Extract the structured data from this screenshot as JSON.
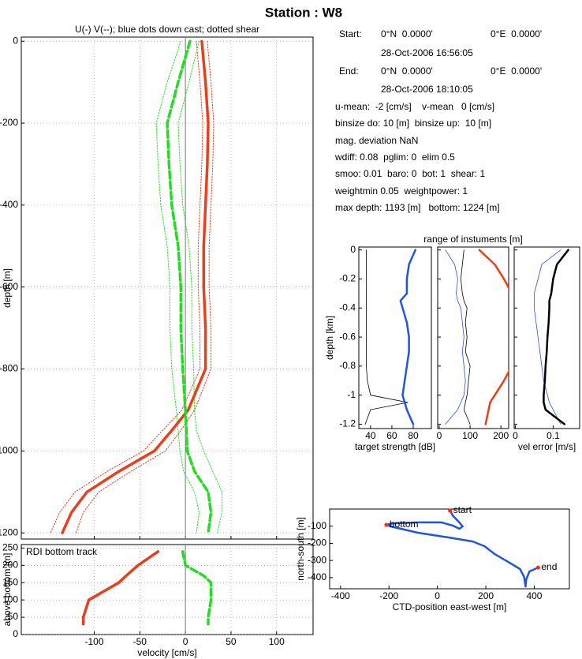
{
  "title": "Station : W8",
  "info": [
    [
      "Start:",
      "0°N  0.0000'",
      "0°E  0.0000'"
    ],
    [
      "28-Oct-2006 16:56:05"
    ],
    [
      "End:",
      "0°N  0.0000'",
      "0°E  0.0000'"
    ],
    [
      "28-Oct-2006 18:10:05"
    ],
    [
      "u-mean:  -2 [cm/s]    v-mean   0 [cm/s]"
    ],
    [
      "binsize do: 10 [m]  binsize up:  10 [m]"
    ],
    [
      "mag. deviation NaN"
    ],
    [
      "wdiff: 0.08  pglim: 0  elim 0.5"
    ],
    [
      "smoo: 0.01  baro: 0  bot: 1  shear: 1"
    ],
    [
      "weightmin 0.05  weightpower: 1"
    ],
    [
      "max depth: 1193 [m]   bottom: 1224 [m]"
    ]
  ],
  "chart_data": [
    {
      "type": "profile",
      "title": "U(-) V(--); blue dots down cast; dotted shear",
      "ylabel": "depth [m]",
      "xlim": [
        -180,
        140
      ],
      "ylim": [
        -1215,
        10
      ],
      "xticks": [
        -100,
        -50,
        0,
        50,
        100
      ],
      "xticklabels": false,
      "yticks": [
        -1200,
        -1000,
        -800,
        -600,
        -400,
        -200,
        0
      ],
      "grid": true,
      "zeroline": true,
      "y": [
        0,
        -100,
        -200,
        -300,
        -400,
        -500,
        -600,
        -700,
        -800,
        -900,
        -950,
        -1000,
        -1050,
        -1100,
        -1150,
        -1200
      ],
      "series": [
        {
          "color": "#e8401c",
          "width": 1,
          "dash": "dotted",
          "values": [
            24,
            28,
            31,
            30,
            28,
            26,
            26,
            28,
            28,
            10,
            -5,
            -22,
            -60,
            -95,
            -112,
            -120
          ]
        },
        {
          "color": "#e8401c",
          "width": 1,
          "dash": "dotted",
          "values": [
            12,
            16,
            19,
            18,
            16,
            14,
            14,
            16,
            16,
            -4,
            -25,
            -46,
            -86,
            -121,
            -138,
            -148
          ]
        },
        {
          "color": "#22dd22",
          "width": 1,
          "dash": "dotted",
          "values": [
            15,
            4,
            -8,
            -6,
            -3,
            4,
            7,
            7,
            9,
            10,
            12,
            20,
            30,
            40,
            40,
            35
          ]
        },
        {
          "color": "#22dd22",
          "width": 1,
          "dash": "dotted",
          "values": [
            -5,
            -20,
            -32,
            -30,
            -27,
            -20,
            -17,
            -17,
            -15,
            -10,
            -8,
            -6,
            -2,
            10,
            15,
            12
          ]
        },
        {
          "color": "#e8401c",
          "width": 3.5,
          "dash": "solid",
          "values": [
            18,
            22,
            25,
            24,
            22,
            20,
            20,
            22,
            22,
            3,
            -15,
            -34,
            -73,
            -108,
            -125,
            -135
          ]
        },
        {
          "color": "#22dd22",
          "width": 3.5,
          "dash": "dashed",
          "values": [
            5,
            -8,
            -20,
            -18,
            -15,
            -8,
            -5,
            -5,
            -3,
            0,
            1,
            2,
            10,
            25,
            28,
            25
          ]
        }
      ]
    },
    {
      "type": "profile",
      "title": "RDI bottom track",
      "ylabel": "above bottom [m]",
      "xlabel": "velocity [cm/s]",
      "xlim": [
        -180,
        140
      ],
      "ylim": [
        0,
        260
      ],
      "xticks": [
        -100,
        -50,
        0,
        50,
        100
      ],
      "yticks": [
        0,
        50,
        100,
        150,
        200,
        250
      ],
      "grid": true,
      "zeroline": true,
      "y": [
        240,
        200,
        170,
        150,
        100,
        50,
        30
      ],
      "series": [
        {
          "color": "#e8401c",
          "width": 3.5,
          "dash": "solid",
          "values": [
            -30,
            -52,
            -65,
            -73,
            -106,
            -112,
            -112
          ]
        },
        {
          "color": "#22dd22",
          "width": 3.5,
          "dash": "dashed",
          "values": [
            -3,
            0,
            20,
            28,
            28,
            25,
            25
          ]
        }
      ]
    },
    {
      "type": "profile",
      "ylabel": "depth [km]",
      "xlabel": "target strength [dB]",
      "xlabel_color": "#2255dd",
      "xlim": [
        29,
        97
      ],
      "ylim": [
        -1.23,
        0.02
      ],
      "xticks": [
        40,
        60,
        80
      ],
      "yticks": [
        -1.2,
        -1,
        -0.8,
        -0.6,
        -0.4,
        -0.2,
        0
      ],
      "y": [
        0,
        -0.1,
        -0.2,
        -0.3,
        -0.35,
        -0.4,
        -0.5,
        -0.6,
        -0.7,
        -0.8,
        -0.9,
        -1.0,
        -1.05,
        -1.1,
        -1.2
      ],
      "series": [
        {
          "color": "#000000",
          "width": 0.8,
          "dash": "solid",
          "values": [
            36,
            36,
            36,
            36,
            36,
            36,
            36,
            36,
            36,
            36,
            37,
            40,
            75,
            40,
            35
          ]
        },
        {
          "color": "#2255dd",
          "width": 2.5,
          "dash": "solid",
          "values": [
            82,
            76,
            74,
            74,
            68,
            70,
            74,
            76,
            76,
            74,
            72,
            70,
            72,
            74,
            80
          ]
        }
      ]
    },
    {
      "type": "profile",
      "title": "range of instuments [m]",
      "title_color": "#e8401c",
      "xlim": [
        -5,
        225
      ],
      "ylim": [
        -1.23,
        0.02
      ],
      "xticks": [
        0,
        100,
        200
      ],
      "yticks": [
        -1.2,
        -1,
        -0.8,
        -0.6,
        -0.4,
        -0.2,
        0
      ],
      "yticklabels": false,
      "y": [
        0,
        -0.1,
        -0.2,
        -0.3,
        -0.35,
        -0.4,
        -0.5,
        -0.6,
        -0.7,
        -0.8,
        -0.9,
        -1.0,
        -1.05,
        -1.1,
        -1.2
      ],
      "series": [
        {
          "color": "#2255dd",
          "width": 0.8,
          "dash": "solid",
          "values": [
            20,
            50,
            60,
            55,
            60,
            70,
            75,
            80,
            75,
            80,
            85,
            80,
            70,
            60,
            20
          ]
        },
        {
          "color": "#000000",
          "width": 0.8,
          "dash": "solid",
          "values": [
            80,
            75,
            70,
            75,
            80,
            90,
            85,
            90,
            85,
            100,
            95,
            90,
            85,
            80,
            100
          ]
        },
        {
          "color": "#e8401c",
          "width": 2.5,
          "dash": "solid",
          "values": [
            130,
            180,
            210,
            235,
            240,
            245,
            240,
            245,
            240,
            235,
            210,
            180,
            165,
            160,
            150
          ]
        }
      ]
    },
    {
      "type": "profile",
      "xlabel": "vel error [m/s]",
      "xlim": [
        -0.003,
        0.17
      ],
      "ylim": [
        -1.23,
        0.02
      ],
      "xticks": [
        0,
        0.1
      ],
      "yticks": [
        -1.2,
        -1,
        -0.8,
        -0.6,
        -0.4,
        -0.2,
        0
      ],
      "yticklabels": false,
      "y": [
        0,
        -0.1,
        -0.2,
        -0.3,
        -0.35,
        -0.4,
        -0.5,
        -0.6,
        -0.7,
        -0.8,
        -0.9,
        -1.0,
        -1.05,
        -1.1,
        -1.2
      ],
      "series": [
        {
          "color": "#2255dd",
          "width": 0.8,
          "dash": "solid",
          "values": [
            0.12,
            0.07,
            0.06,
            0.05,
            0.05,
            0.05,
            0.055,
            0.06,
            0.065,
            0.07,
            0.075,
            0.085,
            0.09,
            0.1,
            0.12
          ]
        },
        {
          "color": "#000000",
          "width": 2.5,
          "dash": "solid",
          "values": [
            0.14,
            0.11,
            0.1,
            0.095,
            0.09,
            0.09,
            0.088,
            0.085,
            0.083,
            0.08,
            0.078,
            0.075,
            0.075,
            0.08,
            0.13
          ]
        }
      ]
    },
    {
      "type": "track",
      "xlabel": "CTD-position east-west [m]",
      "ylabel": "north-south [m]",
      "xlim": [
        -445,
        545
      ],
      "ylim": [
        -465,
        0
      ],
      "xticks": [
        -400,
        -200,
        0,
        200,
        400
      ],
      "yticks": [
        -400,
        -300,
        -200,
        -100
      ],
      "x": [
        52,
        65,
        88,
        104,
        91,
        65,
        16,
        -81,
        -179,
        -211,
        -195,
        -81,
        49,
        146,
        195,
        237,
        293,
        341,
        358,
        364,
        367,
        380,
        416
      ],
      "series": [
        {
          "color": "#2255dd",
          "width": 2.5,
          "dash": "solid",
          "values": [
            -9,
            -41,
            -74,
            -101,
            -115,
            -97,
            -78,
            -78,
            -83,
            -92,
            -101,
            -138,
            -166,
            -189,
            -217,
            -263,
            -309,
            -350,
            -396,
            -452,
            -410,
            -364,
            -341
          ]
        }
      ],
      "annotations": [
        {
          "text": "start",
          "x": 52,
          "y": -9
        },
        {
          "text": "bottom",
          "x": -211,
          "y": -92
        },
        {
          "text": "end",
          "x": 416,
          "y": -341
        }
      ]
    }
  ]
}
